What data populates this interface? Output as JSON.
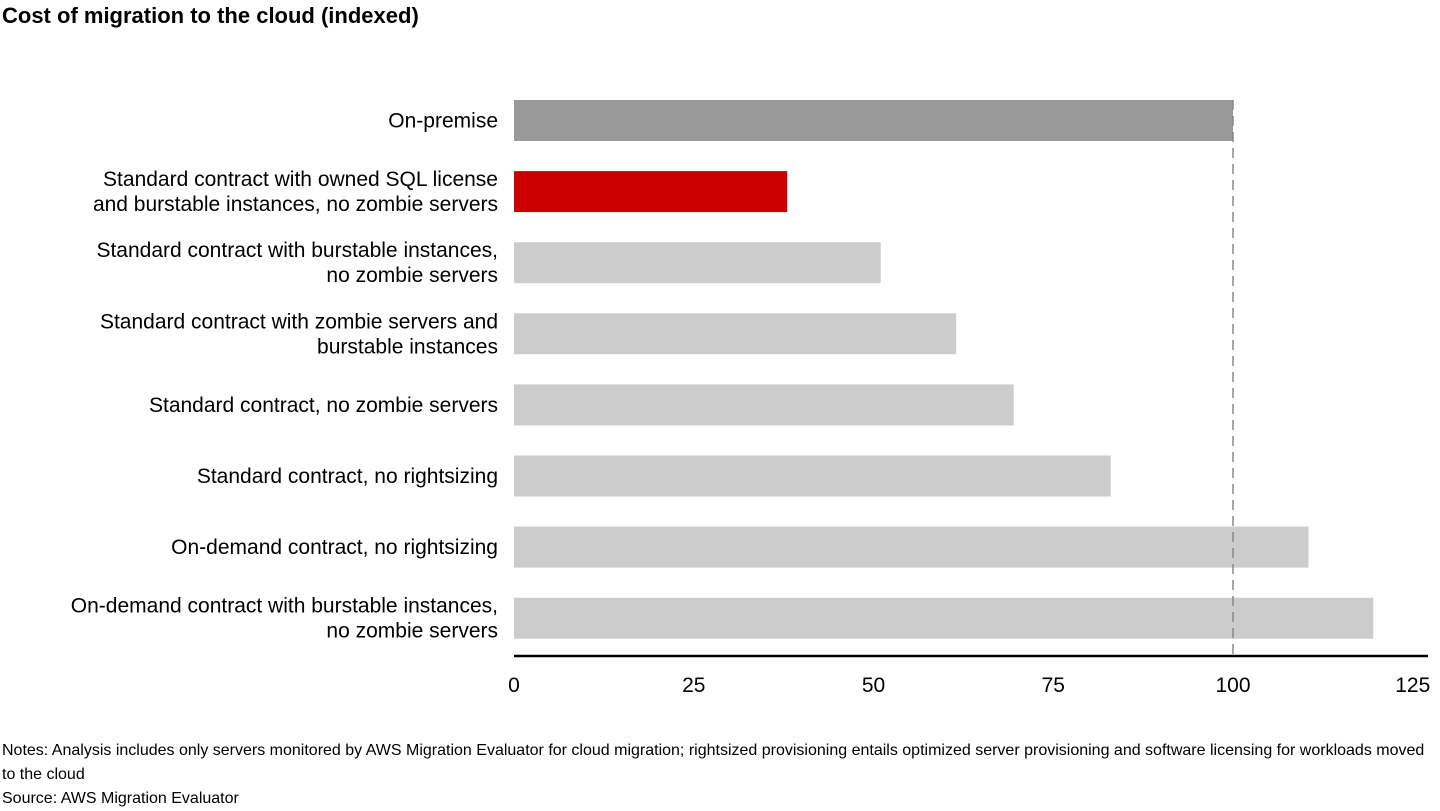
{
  "chart_data": {
    "type": "bar",
    "orientation": "horizontal",
    "title": "Cost of migration to the cloud (indexed)",
    "categories": [
      [
        "On-premise"
      ],
      [
        "Standard contract with owned SQL license",
        "and burstable instances, no zombie servers"
      ],
      [
        "Standard contract with burstable instances,",
        "no zombie servers"
      ],
      [
        "Standard contract with zombie servers and",
        "burstable instances"
      ],
      [
        "Standard contract, no zombie servers"
      ],
      [
        "Standard contract, no rightsizing"
      ],
      [
        "On-demand contract, no rightsizing"
      ],
      [
        "On-demand contract with burstable instances,",
        "no zombie servers"
      ]
    ],
    "values": [
      100,
      38,
      51,
      61.5,
      69.5,
      83,
      110.5,
      119.5
    ],
    "bar_colors": [
      "#999999",
      "#cc0000",
      "#cccccc",
      "#cccccc",
      "#cccccc",
      "#cccccc",
      "#cccccc",
      "#cccccc"
    ],
    "reference_line": 100,
    "xlim": [
      0,
      127
    ],
    "xticks": [
      "0",
      "25",
      "50",
      "75",
      "100",
      "125"
    ],
    "xtick_values": [
      0,
      25,
      50,
      75,
      100,
      125
    ],
    "xlabel": "",
    "ylabel": "",
    "grid": false,
    "colors": {
      "highlight": "#cc0000",
      "baseline": "#999999",
      "other": "#cccccc",
      "reference_line": "#888888"
    }
  },
  "footer": {
    "notes": "Notes: Analysis includes only servers monitored by AWS Migration Evaluator for cloud migration; rightsized provisioning entails optimized server provisioning and software licensing for workloads moved to the cloud",
    "source": "Source: AWS Migration Evaluator"
  }
}
